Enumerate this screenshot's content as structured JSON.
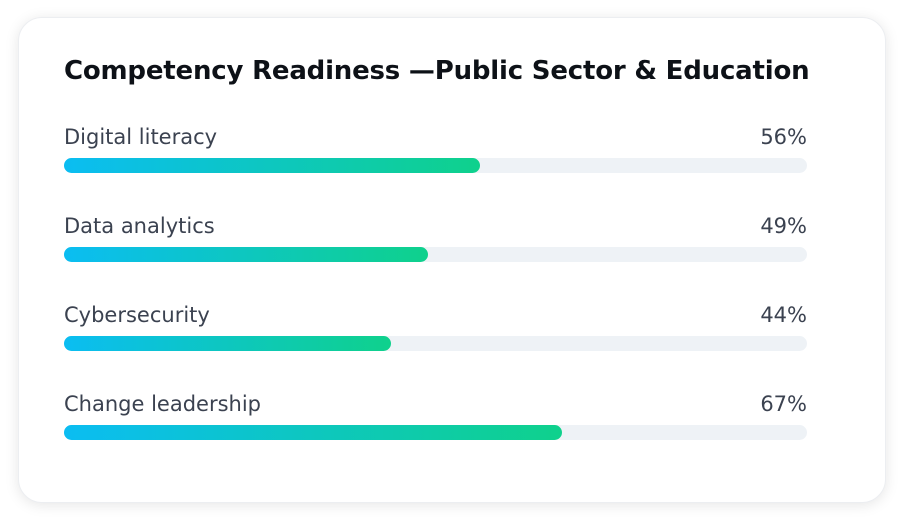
{
  "chart_data": {
    "type": "progress",
    "title": "Competency Readiness —Public Sector & Education",
    "categories": [
      "Digital literacy",
      "Data analytics",
      "Cybersecurity",
      "Change leadership"
    ],
    "values": [
      56,
      49,
      44,
      67
    ],
    "value_labels": [
      "56%",
      "49%",
      "44%",
      "67%"
    ],
    "xlim": [
      0,
      100
    ],
    "color": [
      "#0bbdf2",
      "#0fd18c"
    ],
    "track_color": "#eef2f6"
  }
}
